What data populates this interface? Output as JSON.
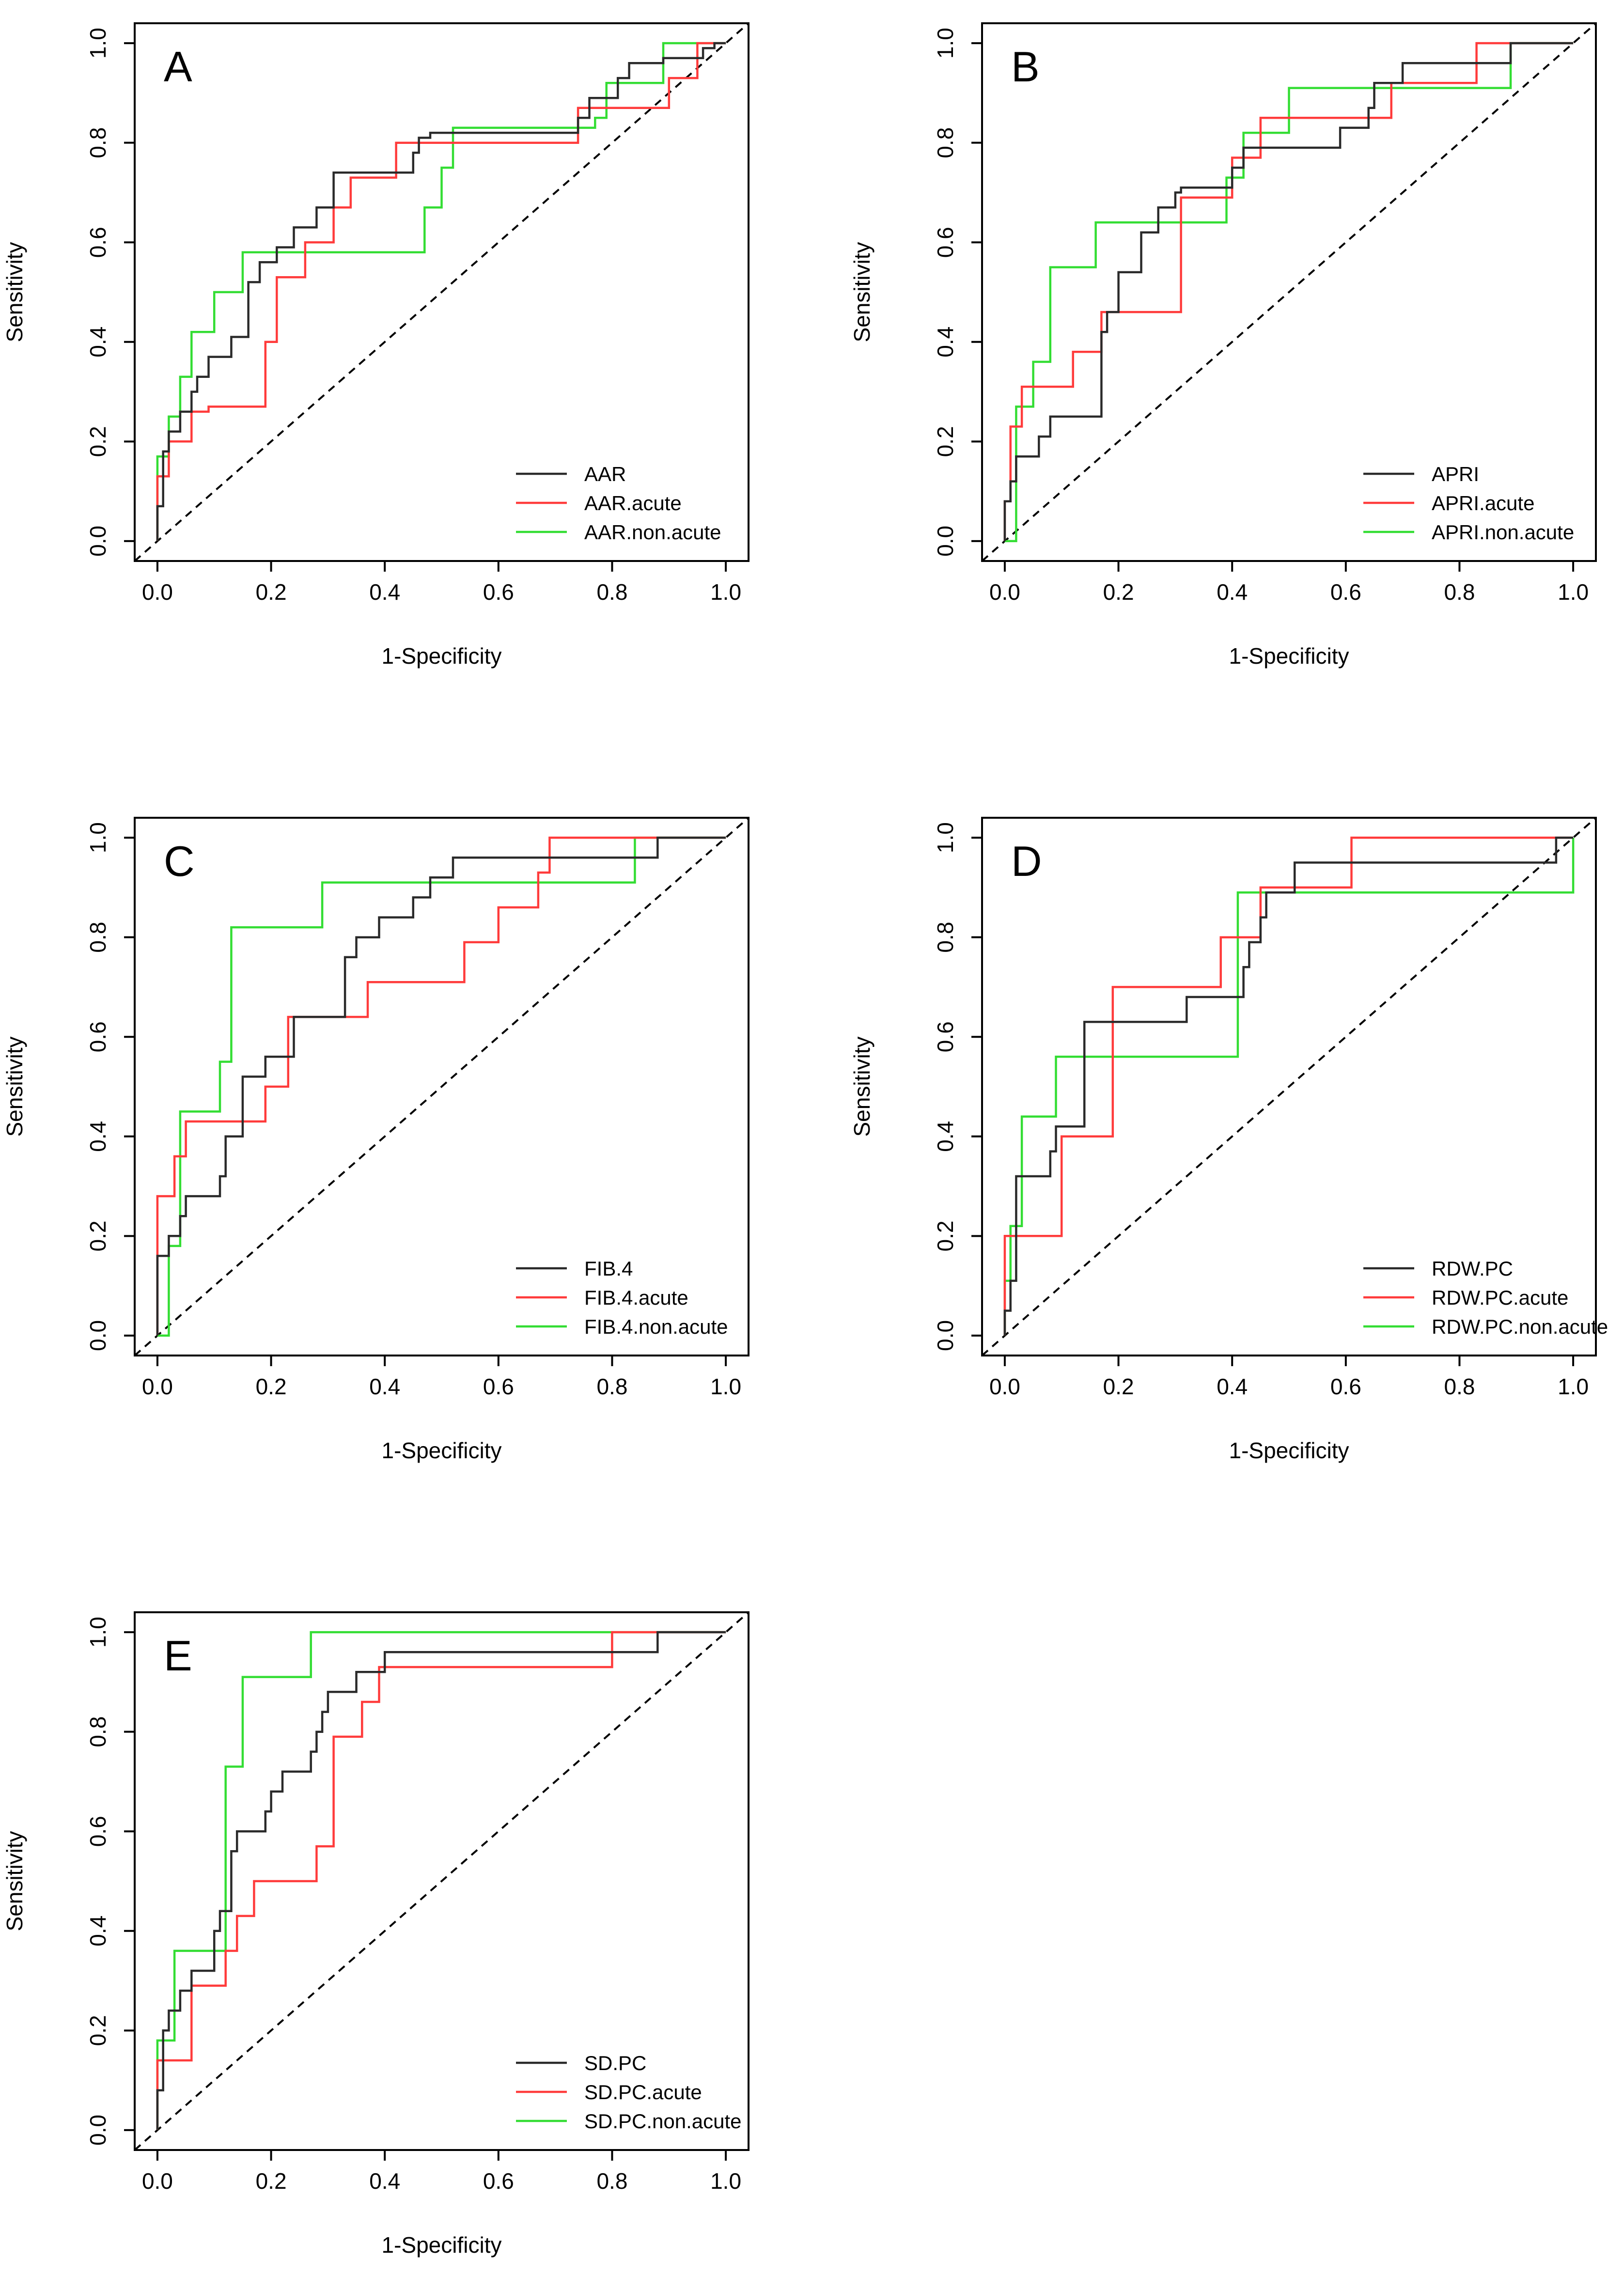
{
  "figure": {
    "description_free": true,
    "colors": {
      "overall": "#2a2a2a",
      "acute": "#ff3b3b",
      "non_acute": "#33dd33",
      "reference": "#000000"
    }
  },
  "chart_data": [
    {
      "panel": "A",
      "type": "line",
      "xlabel": "1-Specificity",
      "ylabel": "Sensitivity",
      "xlim": [
        0,
        1
      ],
      "ylim": [
        0,
        1
      ],
      "xticks": [
        "0.0",
        "0.2",
        "0.4",
        "0.6",
        "0.8",
        "1.0"
      ],
      "yticks": [
        "0.0",
        "0.2",
        "0.4",
        "0.6",
        "0.8",
        "1.0"
      ],
      "legend_position": "bottom-right",
      "series": [
        {
          "name": "AAR",
          "color": "#2a2a2a",
          "x": [
            0,
            0,
            0.01,
            0.01,
            0.02,
            0.02,
            0.04,
            0.04,
            0.06,
            0.06,
            0.07,
            0.07,
            0.09,
            0.09,
            0.13,
            0.13,
            0.16,
            0.16,
            0.18,
            0.18,
            0.21,
            0.21,
            0.24,
            0.24,
            0.28,
            0.28,
            0.31,
            0.31,
            0.45,
            0.45,
            0.46,
            0.46,
            0.48,
            0.48,
            0.74,
            0.74,
            0.76,
            0.76,
            0.81,
            0.81,
            0.83,
            0.83,
            0.89,
            0.89,
            0.96,
            0.96,
            0.98,
            0.98,
            1
          ],
          "y": [
            0,
            0.07,
            0.07,
            0.18,
            0.18,
            0.22,
            0.22,
            0.26,
            0.26,
            0.3,
            0.3,
            0.33,
            0.33,
            0.37,
            0.37,
            0.41,
            0.41,
            0.52,
            0.52,
            0.56,
            0.56,
            0.59,
            0.59,
            0.63,
            0.63,
            0.67,
            0.67,
            0.74,
            0.74,
            0.78,
            0.78,
            0.81,
            0.81,
            0.82,
            0.82,
            0.85,
            0.85,
            0.89,
            0.89,
            0.93,
            0.93,
            0.96,
            0.96,
            0.97,
            0.97,
            0.99,
            0.99,
            1,
            1
          ]
        },
        {
          "name": "AAR.acute",
          "color": "#ff3b3b",
          "x": [
            0,
            0,
            0.02,
            0.02,
            0.06,
            0.06,
            0.09,
            0.09,
            0.19,
            0.19,
            0.21,
            0.21,
            0.26,
            0.26,
            0.31,
            0.31,
            0.34,
            0.34,
            0.42,
            0.42,
            0.74,
            0.74,
            0.9,
            0.9,
            0.95,
            0.95,
            1
          ],
          "y": [
            0,
            0.13,
            0.13,
            0.2,
            0.2,
            0.26,
            0.26,
            0.27,
            0.27,
            0.4,
            0.4,
            0.53,
            0.53,
            0.6,
            0.6,
            0.67,
            0.67,
            0.73,
            0.73,
            0.8,
            0.8,
            0.87,
            0.87,
            0.93,
            0.93,
            1,
            1
          ]
        },
        {
          "name": "AAR.non.acute",
          "color": "#33dd33",
          "x": [
            0,
            0,
            0.02,
            0.02,
            0.04,
            0.04,
            0.06,
            0.06,
            0.1,
            0.1,
            0.15,
            0.15,
            0.47,
            0.47,
            0.5,
            0.5,
            0.52,
            0.52,
            0.77,
            0.77,
            0.79,
            0.79,
            0.89,
            0.89,
            0.94,
            0.94,
            1
          ],
          "y": [
            0,
            0.17,
            0.17,
            0.25,
            0.25,
            0.33,
            0.33,
            0.42,
            0.42,
            0.5,
            0.5,
            0.58,
            0.58,
            0.67,
            0.67,
            0.75,
            0.75,
            0.83,
            0.83,
            0.85,
            0.85,
            0.92,
            0.92,
            1,
            1,
            1,
            1
          ]
        }
      ],
      "legend": [
        "AAR",
        "AAR.acute",
        "AAR.non.acute"
      ]
    },
    {
      "panel": "B",
      "type": "line",
      "xlabel": "1-Specificity",
      "ylabel": "Sensitivity",
      "xlim": [
        0,
        1
      ],
      "ylim": [
        0,
        1
      ],
      "xticks": [
        "0.0",
        "0.2",
        "0.4",
        "0.6",
        "0.8",
        "1.0"
      ],
      "yticks": [
        "0.0",
        "0.2",
        "0.4",
        "0.6",
        "0.8",
        "1.0"
      ],
      "legend_position": "bottom-right",
      "series": [
        {
          "name": "APRI",
          "color": "#2a2a2a",
          "x": [
            0,
            0,
            0.01,
            0.01,
            0.02,
            0.02,
            0.06,
            0.06,
            0.08,
            0.08,
            0.17,
            0.17,
            0.18,
            0.18,
            0.2,
            0.2,
            0.24,
            0.24,
            0.27,
            0.27,
            0.3,
            0.3,
            0.31,
            0.31,
            0.4,
            0.4,
            0.42,
            0.42,
            0.44,
            0.44,
            0.47,
            0.47,
            0.59,
            0.59,
            0.64,
            0.64,
            0.65,
            0.65,
            0.7,
            0.7,
            0.89,
            0.89,
            1
          ],
          "y": [
            0,
            0.08,
            0.08,
            0.12,
            0.12,
            0.17,
            0.17,
            0.21,
            0.21,
            0.25,
            0.25,
            0.42,
            0.42,
            0.46,
            0.46,
            0.54,
            0.54,
            0.62,
            0.62,
            0.67,
            0.67,
            0.7,
            0.7,
            0.71,
            0.71,
            0.75,
            0.75,
            0.79,
            0.79,
            0.79,
            0.79,
            0.79,
            0.79,
            0.83,
            0.83,
            0.87,
            0.87,
            0.92,
            0.92,
            0.96,
            0.96,
            1,
            1
          ]
        },
        {
          "name": "APRI.acute",
          "color": "#ff3b3b",
          "x": [
            0,
            0,
            0.01,
            0.01,
            0.03,
            0.03,
            0.05,
            0.05,
            0.12,
            0.12,
            0.17,
            0.17,
            0.24,
            0.24,
            0.31,
            0.31,
            0.4,
            0.4,
            0.45,
            0.45,
            0.6,
            0.6,
            0.68,
            0.68,
            0.83,
            0.83,
            1
          ],
          "y": [
            0,
            0.08,
            0.08,
            0.23,
            0.23,
            0.31,
            0.31,
            0.31,
            0.31,
            0.38,
            0.38,
            0.46,
            0.46,
            0.46,
            0.46,
            0.69,
            0.69,
            0.77,
            0.77,
            0.85,
            0.85,
            0.85,
            0.85,
            0.92,
            0.92,
            1,
            1
          ]
        },
        {
          "name": "APRI.non.acute",
          "color": "#33dd33",
          "x": [
            0,
            0,
            0.02,
            0.02,
            0.03,
            0.03,
            0.05,
            0.05,
            0.08,
            0.08,
            0.16,
            0.16,
            0.39,
            0.39,
            0.42,
            0.42,
            0.5,
            0.5,
            0.89,
            0.89,
            1
          ],
          "y": [
            0,
            0,
            0,
            0.27,
            0.27,
            0.27,
            0.27,
            0.36,
            0.36,
            0.55,
            0.55,
            0.64,
            0.64,
            0.73,
            0.73,
            0.82,
            0.82,
            0.91,
            0.91,
            1,
            1
          ]
        }
      ],
      "legend": [
        "APRI",
        "APRI.acute",
        "APRI.non.acute"
      ]
    },
    {
      "panel": "C",
      "type": "line",
      "xlabel": "1-Specificity",
      "ylabel": "Sensitivity",
      "xlim": [
        0,
        1
      ],
      "ylim": [
        0,
        1
      ],
      "xticks": [
        "0.0",
        "0.2",
        "0.4",
        "0.6",
        "0.8",
        "1.0"
      ],
      "yticks": [
        "0.0",
        "0.2",
        "0.4",
        "0.6",
        "0.8",
        "1.0"
      ],
      "legend_position": "bottom-right",
      "series": [
        {
          "name": "FIB.4",
          "color": "#2a2a2a",
          "x": [
            0,
            0,
            0.02,
            0.02,
            0.04,
            0.04,
            0.05,
            0.05,
            0.11,
            0.11,
            0.12,
            0.12,
            0.15,
            0.15,
            0.19,
            0.19,
            0.24,
            0.24,
            0.33,
            0.33,
            0.35,
            0.35,
            0.39,
            0.39,
            0.45,
            0.45,
            0.48,
            0.48,
            0.52,
            0.52,
            0.88,
            0.88,
            1
          ],
          "y": [
            0,
            0.16,
            0.16,
            0.2,
            0.2,
            0.24,
            0.24,
            0.28,
            0.28,
            0.32,
            0.32,
            0.4,
            0.4,
            0.52,
            0.52,
            0.56,
            0.56,
            0.64,
            0.64,
            0.76,
            0.76,
            0.8,
            0.8,
            0.84,
            0.84,
            0.88,
            0.88,
            0.92,
            0.92,
            0.96,
            0.96,
            1,
            1
          ]
        },
        {
          "name": "FIB.4.acute",
          "color": "#ff3b3b",
          "x": [
            0,
            0,
            0.03,
            0.03,
            0.05,
            0.05,
            0.07,
            0.07,
            0.19,
            0.19,
            0.23,
            0.23,
            0.37,
            0.37,
            0.54,
            0.54,
            0.6,
            0.6,
            0.67,
            0.67,
            0.69,
            0.69,
            1
          ],
          "y": [
            0,
            0.28,
            0.28,
            0.36,
            0.36,
            0.43,
            0.43,
            0.43,
            0.43,
            0.5,
            0.5,
            0.64,
            0.64,
            0.71,
            0.71,
            0.79,
            0.79,
            0.86,
            0.86,
            0.93,
            0.93,
            1,
            1
          ]
        },
        {
          "name": "FIB.4.non.acute",
          "color": "#33dd33",
          "x": [
            0,
            0,
            0.02,
            0.02,
            0.04,
            0.04,
            0.06,
            0.06,
            0.11,
            0.11,
            0.13,
            0.13,
            0.29,
            0.29,
            0.84,
            0.84,
            1
          ],
          "y": [
            0,
            0,
            0,
            0.18,
            0.18,
            0.45,
            0.45,
            0.45,
            0.45,
            0.55,
            0.55,
            0.82,
            0.82,
            0.91,
            0.91,
            1,
            1
          ]
        }
      ],
      "legend": [
        "FIB.4",
        "FIB.4.acute",
        "FIB.4.non.acute"
      ]
    },
    {
      "panel": "D",
      "type": "line",
      "xlabel": "1-Specificity",
      "ylabel": "Sensitivity",
      "xlim": [
        0,
        1
      ],
      "ylim": [
        0,
        1
      ],
      "xticks": [
        "0.0",
        "0.2",
        "0.4",
        "0.6",
        "0.8",
        "1.0"
      ],
      "yticks": [
        "0.0",
        "0.2",
        "0.4",
        "0.6",
        "0.8",
        "1.0"
      ],
      "legend_position": "bottom-right",
      "series": [
        {
          "name": "RDW.PC",
          "color": "#2a2a2a",
          "x": [
            0,
            0,
            0.01,
            0.01,
            0.02,
            0.02,
            0.08,
            0.08,
            0.09,
            0.09,
            0.14,
            0.14,
            0.32,
            0.32,
            0.35,
            0.35,
            0.42,
            0.42,
            0.43,
            0.43,
            0.45,
            0.45,
            0.46,
            0.46,
            0.47,
            0.47,
            0.51,
            0.51,
            0.97,
            0.97,
            1
          ],
          "y": [
            0,
            0.05,
            0.05,
            0.11,
            0.11,
            0.32,
            0.32,
            0.37,
            0.37,
            0.42,
            0.42,
            0.63,
            0.63,
            0.68,
            0.68,
            0.68,
            0.68,
            0.74,
            0.74,
            0.79,
            0.79,
            0.84,
            0.84,
            0.89,
            0.89,
            0.89,
            0.89,
            0.95,
            0.95,
            1,
            1
          ]
        },
        {
          "name": "RDW.PC.acute",
          "color": "#ff3b3b",
          "x": [
            0,
            0,
            0.1,
            0.1,
            0.19,
            0.19,
            0.31,
            0.31,
            0.38,
            0.38,
            0.45,
            0.45,
            0.61,
            0.61,
            1
          ],
          "y": [
            0,
            0.2,
            0.2,
            0.4,
            0.4,
            0.7,
            0.7,
            0.7,
            0.7,
            0.8,
            0.8,
            0.9,
            0.9,
            1,
            1
          ]
        },
        {
          "name": "RDW.PC.non.acute",
          "color": "#33dd33",
          "x": [
            0,
            0,
            0.01,
            0.01,
            0.03,
            0.03,
            0.09,
            0.09,
            0.41,
            0.41,
            1,
            1
          ],
          "y": [
            0,
            0.11,
            0.11,
            0.22,
            0.22,
            0.44,
            0.44,
            0.56,
            0.56,
            0.89,
            0.89,
            1
          ]
        }
      ],
      "legend": [
        "RDW.PC",
        "RDW.PC.acute",
        "RDW.PC.non.acute"
      ]
    },
    {
      "panel": "E",
      "type": "line",
      "xlabel": "1-Specificity",
      "ylabel": "Sensitivity",
      "xlim": [
        0,
        1
      ],
      "ylim": [
        0,
        1
      ],
      "xticks": [
        "0.0",
        "0.2",
        "0.4",
        "0.6",
        "0.8",
        "1.0"
      ],
      "yticks": [
        "0.0",
        "0.2",
        "0.4",
        "0.6",
        "0.8",
        "1.0"
      ],
      "legend_position": "bottom-right",
      "series": [
        {
          "name": "SD.PC",
          "color": "#2a2a2a",
          "x": [
            0,
            0,
            0.01,
            0.01,
            0.02,
            0.02,
            0.04,
            0.04,
            0.06,
            0.06,
            0.1,
            0.1,
            0.11,
            0.11,
            0.13,
            0.13,
            0.14,
            0.14,
            0.15,
            0.15,
            0.19,
            0.19,
            0.2,
            0.2,
            0.22,
            0.22,
            0.27,
            0.27,
            0.28,
            0.28,
            0.29,
            0.29,
            0.3,
            0.3,
            0.31,
            0.31,
            0.35,
            0.35,
            0.4,
            0.4,
            0.44,
            0.44,
            0.88,
            0.88,
            1
          ],
          "y": [
            0,
            0.08,
            0.08,
            0.2,
            0.2,
            0.24,
            0.24,
            0.28,
            0.28,
            0.32,
            0.32,
            0.4,
            0.4,
            0.44,
            0.44,
            0.56,
            0.56,
            0.6,
            0.6,
            0.6,
            0.6,
            0.64,
            0.64,
            0.68,
            0.68,
            0.72,
            0.72,
            0.76,
            0.76,
            0.8,
            0.8,
            0.84,
            0.84,
            0.88,
            0.88,
            0.88,
            0.88,
            0.92,
            0.92,
            0.96,
            0.96,
            0.96,
            0.96,
            1,
            1
          ]
        },
        {
          "name": "SD.PC.acute",
          "color": "#ff3b3b",
          "x": [
            0,
            0,
            0.06,
            0.06,
            0.12,
            0.12,
            0.14,
            0.14,
            0.17,
            0.17,
            0.28,
            0.28,
            0.31,
            0.31,
            0.36,
            0.36,
            0.39,
            0.39,
            0.42,
            0.42,
            0.8,
            0.8,
            1
          ],
          "y": [
            0,
            0.14,
            0.14,
            0.29,
            0.29,
            0.36,
            0.36,
            0.43,
            0.43,
            0.5,
            0.5,
            0.57,
            0.57,
            0.79,
            0.79,
            0.86,
            0.86,
            0.93,
            0.93,
            0.93,
            0.93,
            1,
            1
          ]
        },
        {
          "name": "SD.PC.non.acute",
          "color": "#33dd33",
          "x": [
            0,
            0,
            0.01,
            0.01,
            0.03,
            0.03,
            0.12,
            0.12,
            0.15,
            0.15,
            0.27,
            0.27,
            1
          ],
          "y": [
            0,
            0.18,
            0.18,
            0.18,
            0.18,
            0.36,
            0.36,
            0.73,
            0.73,
            0.91,
            0.91,
            1,
            1
          ]
        }
      ],
      "legend": [
        "SD.PC",
        "SD.PC.acute",
        "SD.PC.non.acute"
      ]
    }
  ]
}
